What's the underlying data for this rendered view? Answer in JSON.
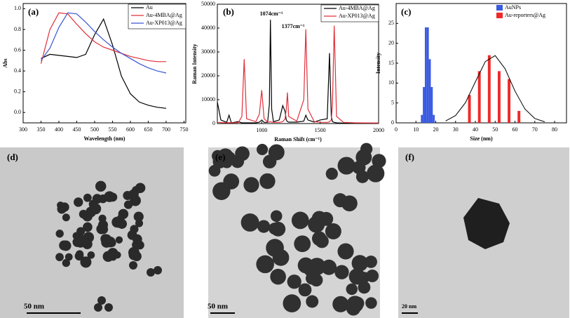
{
  "chart_data": [
    {
      "type": "line",
      "label": "(a)",
      "x_label": "Wavelength (nm)",
      "y_label": "Abs",
      "x": [
        350,
        375,
        400,
        425,
        450,
        475,
        500,
        525,
        550,
        575,
        600,
        625,
        650,
        675,
        700
      ],
      "series": [
        {
          "name": "Au",
          "color": "#000000",
          "values": [
            0.52,
            0.56,
            0.55,
            0.54,
            0.53,
            0.56,
            0.75,
            0.9,
            0.65,
            0.35,
            0.18,
            0.1,
            0.07,
            0.05,
            0.04
          ]
        },
        {
          "name": "Au-4MBA@Ag",
          "color": "#e0303a",
          "values": [
            0.47,
            0.8,
            0.96,
            0.95,
            0.85,
            0.76,
            0.68,
            0.63,
            0.6,
            0.57,
            0.54,
            0.52,
            0.5,
            0.49,
            0.49
          ]
        },
        {
          "name": "Au-XP013@Ag",
          "color": "#3a56d4",
          "values": [
            0.5,
            0.62,
            0.82,
            0.96,
            0.95,
            0.87,
            0.78,
            0.7,
            0.63,
            0.57,
            0.52,
            0.47,
            0.43,
            0.4,
            0.38
          ]
        }
      ],
      "xlim": [
        300,
        755
      ],
      "xticks": [
        300,
        350,
        400,
        450,
        500,
        550,
        600,
        650,
        700,
        750
      ],
      "ylim": [
        -0.1,
        1.05
      ],
      "yticks": [
        {
          "value": 0,
          "label": "0.0"
        },
        0.2,
        0.4,
        0.6,
        0.8,
        {
          "value": 1,
          "label": "1.0"
        }
      ]
    },
    {
      "type": "line",
      "label": "(b)",
      "x_label": "Raman Shift (cm⁻¹)",
      "y_label": "Raman Intensity",
      "annotations": [
        "1074cm⁻¹",
        "1377cm⁻¹"
      ],
      "x": [
        620,
        650,
        700,
        720,
        740,
        800,
        830,
        850,
        870,
        950,
        980,
        1000,
        1020,
        1050,
        1065,
        1074,
        1085,
        1100,
        1150,
        1180,
        1200,
        1210,
        1220,
        1230,
        1300,
        1360,
        1377,
        1395,
        1450,
        1500,
        1560,
        1580,
        1595,
        1605,
        1620,
        1640,
        1700,
        1800,
        2000
      ],
      "series": [
        {
          "name": "Au-4MBA@Ag",
          "color": "#000000",
          "values": [
            9000,
            1500,
            500,
            3500,
            300,
            800,
            300,
            300,
            300,
            300,
            600,
            1500,
            500,
            500,
            8000,
            43500,
            6000,
            800,
            1500,
            7500,
            5000,
            1500,
            800,
            600,
            600,
            1000,
            3500,
            1500,
            600,
            1500,
            2000,
            29500,
            3000,
            800,
            500,
            300,
            200,
            200,
            200
          ]
        },
        {
          "name": "Au-XP013@Ag",
          "color": "#e0303a",
          "values": [
            500,
            400,
            300,
            400,
            300,
            400,
            3000,
            27000,
            2000,
            800,
            4000,
            14000,
            2000,
            700,
            600,
            800,
            600,
            500,
            500,
            800,
            2000,
            6000,
            13000,
            3000,
            1000,
            10000,
            39500,
            6000,
            800,
            500,
            500,
            700,
            1500,
            8000,
            41000,
            3000,
            500,
            300,
            200
          ]
        }
      ],
      "xlim": [
        620,
        2000
      ],
      "xticks": [
        1000,
        1500,
        2000
      ],
      "ylim": [
        0,
        50000
      ],
      "yticks": [
        0,
        10000,
        20000,
        30000,
        40000,
        50000
      ]
    },
    {
      "type": "histogram",
      "label": "(c)",
      "x_label": "Size (nm)",
      "y_label": "Intensity",
      "series": [
        {
          "name": "AuNPs",
          "color": "#3a5ae0",
          "x": [
            13,
            14,
            15,
            16,
            17,
            18,
            19
          ],
          "values": [
            2,
            9,
            24,
            24,
            16,
            9,
            2
          ]
        },
        {
          "name": "Au-reporters@Ag",
          "color": "#ee2a2a",
          "x": [
            37,
            42,
            47,
            52,
            57,
            62
          ],
          "values": [
            7,
            13,
            17,
            13,
            11,
            3
          ]
        }
      ],
      "fit": {
        "color": "#000000",
        "x": [
          25,
          30,
          35,
          40,
          45,
          50,
          55,
          60,
          65,
          70,
          75
        ],
        "values": [
          0.48,
          1.83,
          5.08,
          10.3,
          15.4,
          16.9,
          13.6,
          8,
          3.5,
          1.1,
          0.26
        ]
      },
      "xlim": [
        0,
        86
      ],
      "xticks": [
        0,
        10,
        20,
        30,
        40,
        50,
        60,
        70,
        80
      ],
      "ylim": [
        0,
        30
      ],
      "yticks": [
        0,
        5,
        10,
        15,
        20,
        25
      ]
    }
  ],
  "panels": [
    {
      "label": "(d)",
      "scale": "50 nm"
    },
    {
      "label": "(e)",
      "scale": "50 nm"
    },
    {
      "label": "(f)",
      "scale": "20 nm"
    }
  ]
}
